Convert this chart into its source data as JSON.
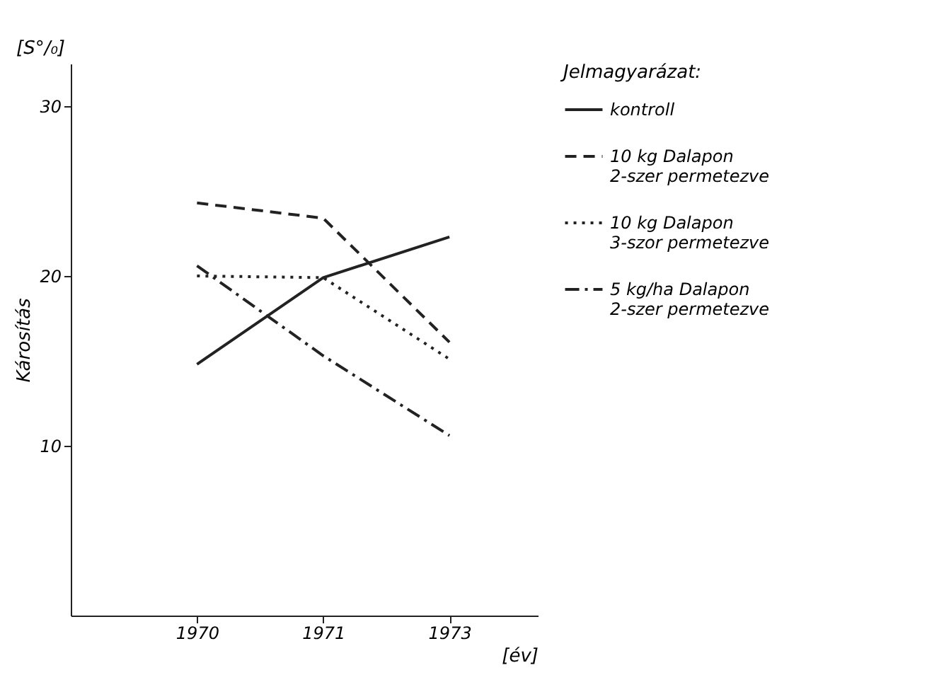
{
  "chart_data": {
    "type": "line",
    "xlabel": "[év]",
    "ylabel": "Károsítás",
    "legend_title": "Jelmagyarázat:",
    "annotations": [
      "[S°/₀]"
    ],
    "categories": [
      "1970",
      "1971",
      "1973"
    ],
    "ylim": [
      0,
      32.5
    ],
    "yticks": [
      10,
      20,
      30
    ],
    "grid": false,
    "legend": "right",
    "marker": "none",
    "series": [
      {
        "name": "kontroll",
        "color": "#222222",
        "line_style": "solid",
        "values": [
          14.8,
          19.9,
          22.3
        ]
      },
      {
        "name": "10 kg Dalapon\n2-szer permetezve",
        "color": "#222222",
        "line_style": "dashed",
        "values": [
          24.3,
          23.4,
          16.1
        ]
      },
      {
        "name": "10 kg Dalapon\n3-szor permetezve",
        "color": "#222222",
        "line_style": "dotted",
        "values": [
          20.0,
          19.9,
          15.1
        ]
      },
      {
        "name": "5 kg/ha Dalapon\n2-szer permetezve",
        "color": "#222222",
        "line_style": "dashdot",
        "values": [
          20.6,
          15.3,
          10.6
        ]
      }
    ]
  }
}
